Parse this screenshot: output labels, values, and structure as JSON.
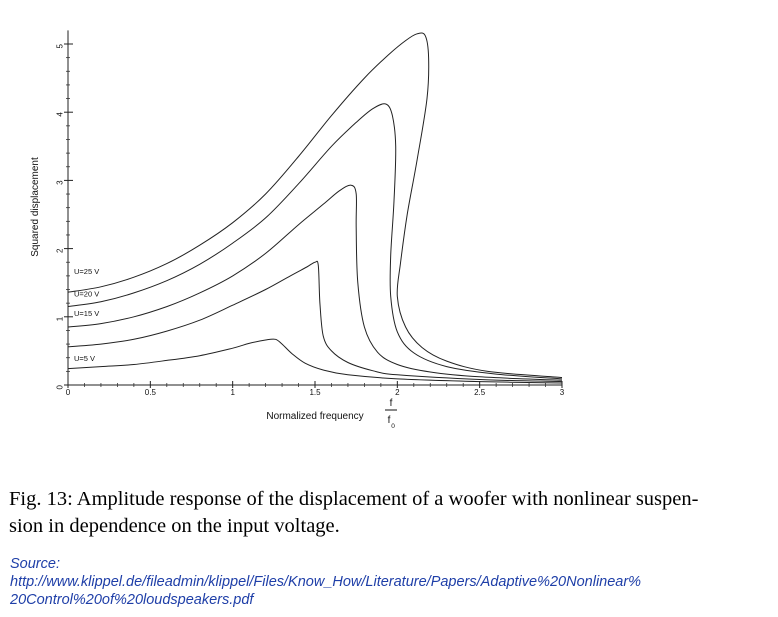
{
  "chart_data": {
    "type": "line",
    "title": "",
    "xlabel": "Normalized frequency",
    "xlabel_fraction": {
      "numerator": "f",
      "denominator": "f",
      "denominator_subscript": "0"
    },
    "ylabel": "Squared displacement",
    "xlim": [
      0,
      3
    ],
    "ylim": [
      0,
      5.2
    ],
    "x_ticks": [
      "0",
      "0.5",
      "1",
      "1.5",
      "2",
      "2.5",
      "3"
    ],
    "y_ticks": [
      "0",
      "1",
      "2",
      "3",
      "4",
      "5"
    ],
    "grid": false,
    "series": [
      {
        "name": "U=5 V",
        "points": [
          [
            0,
            0.24
          ],
          [
            0.2,
            0.27
          ],
          [
            0.4,
            0.3
          ],
          [
            0.6,
            0.36
          ],
          [
            0.8,
            0.43
          ],
          [
            1.0,
            0.54
          ],
          [
            1.1,
            0.61
          ],
          [
            1.2,
            0.66
          ],
          [
            1.26,
            0.67
          ],
          [
            1.3,
            0.6
          ],
          [
            1.36,
            0.46
          ],
          [
            1.44,
            0.32
          ],
          [
            1.55,
            0.22
          ],
          [
            1.7,
            0.15
          ],
          [
            2.0,
            0.09
          ],
          [
            2.5,
            0.05
          ],
          [
            3.0,
            0.03
          ]
        ]
      },
      {
        "name": "",
        "points": [
          [
            0,
            0.56
          ],
          [
            0.2,
            0.6
          ],
          [
            0.4,
            0.67
          ],
          [
            0.6,
            0.79
          ],
          [
            0.8,
            0.95
          ],
          [
            1.0,
            1.17
          ],
          [
            1.2,
            1.4
          ],
          [
            1.35,
            1.6
          ],
          [
            1.45,
            1.73
          ],
          [
            1.5,
            1.8
          ],
          [
            1.52,
            1.75
          ],
          [
            1.53,
            1.2
          ],
          [
            1.55,
            0.72
          ],
          [
            1.6,
            0.5
          ],
          [
            1.7,
            0.33
          ],
          [
            1.85,
            0.21
          ],
          [
            2.0,
            0.15
          ],
          [
            2.5,
            0.08
          ],
          [
            3.0,
            0.05
          ]
        ]
      },
      {
        "name": "U=15 V",
        "points": [
          [
            0,
            0.85
          ],
          [
            0.2,
            0.9
          ],
          [
            0.4,
            1.0
          ],
          [
            0.6,
            1.15
          ],
          [
            0.8,
            1.35
          ],
          [
            1.0,
            1.6
          ],
          [
            1.2,
            1.93
          ],
          [
            1.4,
            2.35
          ],
          [
            1.55,
            2.65
          ],
          [
            1.65,
            2.85
          ],
          [
            1.72,
            2.93
          ],
          [
            1.75,
            2.8
          ],
          [
            1.75,
            2.3
          ],
          [
            1.76,
            1.5
          ],
          [
            1.8,
            0.85
          ],
          [
            1.88,
            0.48
          ],
          [
            2.0,
            0.3
          ],
          [
            2.2,
            0.19
          ],
          [
            2.5,
            0.12
          ],
          [
            3.0,
            0.07
          ]
        ]
      },
      {
        "name": "U=20 V",
        "points": [
          [
            0,
            1.15
          ],
          [
            0.2,
            1.22
          ],
          [
            0.4,
            1.35
          ],
          [
            0.6,
            1.53
          ],
          [
            0.8,
            1.77
          ],
          [
            1.0,
            2.08
          ],
          [
            1.2,
            2.45
          ],
          [
            1.4,
            2.95
          ],
          [
            1.6,
            3.5
          ],
          [
            1.75,
            3.85
          ],
          [
            1.85,
            4.05
          ],
          [
            1.93,
            4.12
          ],
          [
            1.97,
            3.95
          ],
          [
            1.99,
            3.5
          ],
          [
            1.98,
            2.7
          ],
          [
            1.96,
            1.9
          ],
          [
            1.96,
            1.3
          ],
          [
            2.0,
            0.78
          ],
          [
            2.1,
            0.47
          ],
          [
            2.3,
            0.27
          ],
          [
            2.6,
            0.16
          ],
          [
            3.0,
            0.09
          ]
        ]
      },
      {
        "name": "U=25 V",
        "points": [
          [
            0,
            1.36
          ],
          [
            0.2,
            1.44
          ],
          [
            0.4,
            1.58
          ],
          [
            0.6,
            1.78
          ],
          [
            0.8,
            2.05
          ],
          [
            1.0,
            2.38
          ],
          [
            1.2,
            2.8
          ],
          [
            1.4,
            3.35
          ],
          [
            1.6,
            3.95
          ],
          [
            1.8,
            4.5
          ],
          [
            1.95,
            4.85
          ],
          [
            2.05,
            5.05
          ],
          [
            2.12,
            5.15
          ],
          [
            2.17,
            5.12
          ],
          [
            2.19,
            4.8
          ],
          [
            2.18,
            4.2
          ],
          [
            2.12,
            3.3
          ],
          [
            2.06,
            2.5
          ],
          [
            2.02,
            1.8
          ],
          [
            2.0,
            1.3
          ],
          [
            2.05,
            0.85
          ],
          [
            2.15,
            0.55
          ],
          [
            2.3,
            0.35
          ],
          [
            2.55,
            0.2
          ],
          [
            3.0,
            0.11
          ]
        ]
      }
    ],
    "curve_labels": [
      "U=25 V",
      "U=20 V",
      "U=15 V",
      "U=5 V"
    ]
  },
  "caption": "Fig. 13: Amplitude response of the displacement of a woofer with nonlinear suspen-sion in dependence on the input voltage.",
  "caption_line1": "Fig. 13: Amplitude response of the displacement of a woofer with nonlinear suspen-",
  "caption_line2": "sion in dependence on the input voltage.",
  "source_label": "Source:",
  "source_line1": "http://www.klippel.de/fileadmin/klippel/Files/Know_How/Literature/Papers/Adaptive%20Nonlinear%",
  "source_line2": "20Control%20of%20loudspeakers.pdf"
}
